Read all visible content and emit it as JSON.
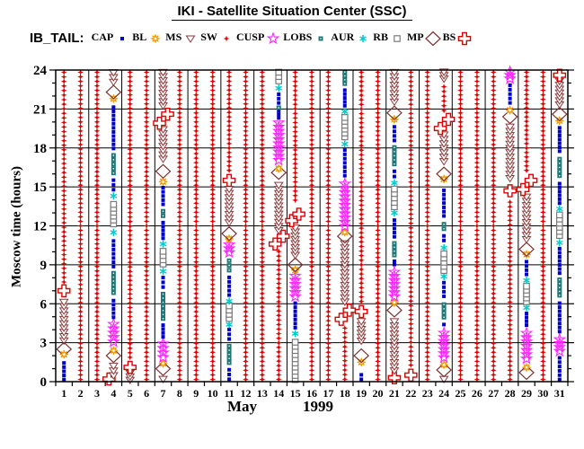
{
  "title": {
    "text": "IKI - Satellite Situation Center (SSC)"
  },
  "legend": {
    "label": "IB_TAIL:",
    "items": [
      {
        "label": "CAP",
        "region": "CAP"
      },
      {
        "label": "BL",
        "region": "BL"
      },
      {
        "label": "MS",
        "region": "MS"
      },
      {
        "label": "SW",
        "region": "SW"
      },
      {
        "label": "CUSP",
        "region": "CUSP"
      },
      {
        "label": "LOBS",
        "region": "LOBS"
      },
      {
        "label": "AUR",
        "region": "AUR"
      },
      {
        "label": "RB",
        "region": "RB"
      },
      {
        "label": "MP",
        "region": "MP"
      },
      {
        "label": "BS",
        "region": "BS"
      }
    ]
  },
  "axes": {
    "x": {
      "month": "May",
      "year": "1999",
      "days": [
        1,
        2,
        3,
        4,
        5,
        6,
        7,
        8,
        9,
        10,
        11,
        12,
        13,
        14,
        15,
        16,
        17,
        18,
        19,
        20,
        21,
        22,
        23,
        24,
        25,
        26,
        27,
        28,
        29,
        30,
        31
      ]
    },
    "y": {
      "label": "Moscow time (hours)",
      "ticks": [
        0,
        3,
        6,
        9,
        12,
        15,
        18,
        21,
        24
      ],
      "range": [
        0,
        24
      ]
    }
  },
  "regions": {
    "CAP": {
      "color": "#0000cc",
      "marker": "filled-square-blue"
    },
    "BL": {
      "color": "#ee9900",
      "marker": "open-sun-orange"
    },
    "MS": {
      "color": "#8b3a3a",
      "marker": "open-triangle-down-maroon"
    },
    "SW": {
      "color": "#dd0000",
      "marker": "filled-star-red"
    },
    "CUSP": {
      "color": "#ff22ff",
      "marker": "open-star-magenta"
    },
    "LOBS": {
      "color": "#1e7878",
      "marker": "filled-square-teal"
    },
    "AUR": {
      "color": "#00cccc",
      "marker": "asterisk-cyan"
    },
    "RB": {
      "color": "#7a7a7a",
      "marker": "open-square-gray"
    },
    "MP": {
      "color": "#7a3030",
      "marker": "open-diamond-maroon"
    },
    "BS": {
      "color": "#dd0000",
      "marker": "open-cross-red"
    }
  },
  "chart_data": {
    "type": "scatter",
    "subtype": "satellite-region-timeline",
    "title": "IKI - Satellite Situation Center (SSC)",
    "satellite": "IB_TAIL",
    "xlabel": "May 1999 (day of month)",
    "ylabel": "Moscow time (hours)",
    "xlim": [
      1,
      31
    ],
    "ylim": [
      0,
      24
    ],
    "x_gridline_every_days": 2,
    "y_gridline_every_hours": 3,
    "days": [
      {
        "day": 1,
        "segments": [
          [
            "SW",
            7.5,
            24
          ],
          [
            "BS",
            7.0,
            7.0
          ],
          [
            "MS",
            3.0,
            6.3
          ],
          [
            "MP",
            2.5,
            2.5
          ],
          [
            "BL",
            2.1,
            2.1
          ],
          [
            "CAP",
            0,
            1.6
          ]
        ]
      },
      {
        "day": 2,
        "segments": [
          [
            "SW",
            0,
            24
          ]
        ]
      },
      {
        "day": 3,
        "segments": [
          [
            "SW",
            0,
            24
          ]
        ]
      },
      {
        "day": 4,
        "segments": [
          [
            "BS",
            0.2,
            0.2,
            -5
          ],
          [
            "MS",
            0.3,
            1.4
          ],
          [
            "MP",
            2.0,
            2.0
          ],
          [
            "BL",
            2.4,
            2.4
          ],
          [
            "CUSP",
            2.9,
            4.6
          ],
          [
            "CAP",
            4.8,
            6.4
          ],
          [
            "LOBS",
            6.7,
            8.5
          ],
          [
            "CAP",
            8.7,
            11.0
          ],
          [
            "AUR",
            11.5,
            11.5
          ],
          [
            "RB",
            12.0,
            13.8
          ],
          [
            "AUR",
            14.3,
            14.3
          ],
          [
            "CAP",
            14.6,
            15.7
          ],
          [
            "LOBS",
            15.9,
            17.6
          ],
          [
            "CAP",
            17.8,
            21.3
          ],
          [
            "BL",
            21.8,
            21.8
          ],
          [
            "MP",
            22.3,
            22.3
          ],
          [
            "MS",
            22.9,
            24
          ]
        ]
      },
      {
        "day": 5,
        "segments": [
          [
            "MS",
            0,
            0.8
          ],
          [
            "BS",
            1.1,
            1.1
          ],
          [
            "SW",
            1.7,
            24
          ]
        ]
      },
      {
        "day": 6,
        "segments": [
          [
            "SW",
            0,
            24
          ]
        ]
      },
      {
        "day": 7,
        "segments": [
          [
            "MS",
            0,
            0.4
          ],
          [
            "MP",
            1.0,
            1.0
          ],
          [
            "BL",
            1.4,
            1.4
          ],
          [
            "CUSP",
            1.7,
            3.1
          ],
          [
            "CAP",
            3.3,
            4.5
          ],
          [
            "LOBS",
            4.7,
            6.9
          ],
          [
            "CAP",
            7.1,
            8.2
          ],
          [
            "AUR",
            8.5,
            8.5
          ],
          [
            "RB",
            8.9,
            10.2
          ],
          [
            "AUR",
            10.6,
            10.6
          ],
          [
            "CAP",
            10.9,
            12.4
          ],
          [
            "LOBS",
            12.6,
            13.3
          ],
          [
            "CAP",
            13.5,
            15.1
          ],
          [
            "BL",
            15.4,
            15.4
          ],
          [
            "MP",
            16.2,
            16.2
          ],
          [
            "MS",
            17.0,
            19.6
          ],
          [
            "BS",
            19.9,
            19.9,
            -4
          ],
          [
            "BS",
            20.6,
            20.6,
            5
          ],
          [
            "MS",
            21.1,
            24
          ]
        ]
      },
      {
        "day": 8,
        "segments": [
          [
            "SW",
            0,
            24
          ]
        ]
      },
      {
        "day": 9,
        "segments": [
          [
            "SW",
            0,
            24
          ]
        ]
      },
      {
        "day": 10,
        "segments": [
          [
            "SW",
            0,
            24
          ]
        ]
      },
      {
        "day": 11,
        "segments": [
          [
            "CAP",
            0,
            1.1
          ],
          [
            "LOBS",
            1.3,
            2.9
          ],
          [
            "CAP",
            3.1,
            4.2
          ],
          [
            "AUR",
            4.4,
            4.4
          ],
          [
            "RB",
            4.7,
            6.0
          ],
          [
            "AUR",
            6.2,
            6.2
          ],
          [
            "CAP",
            6.5,
            8.2
          ],
          [
            "LOBS",
            8.4,
            9.5
          ],
          [
            "CUSP",
            9.8,
            10.7
          ],
          [
            "BL",
            11.0,
            11.0
          ],
          [
            "MP",
            11.4,
            11.4
          ],
          [
            "MS",
            12.1,
            15.0
          ],
          [
            "BS",
            15.5,
            15.5
          ],
          [
            "SW",
            16.1,
            24
          ]
        ]
      },
      {
        "day": 12,
        "segments": [
          [
            "SW",
            0,
            24
          ]
        ]
      },
      {
        "day": 13,
        "segments": [
          [
            "SW",
            0,
            24
          ]
        ]
      },
      {
        "day": 14,
        "segments": [
          [
            "SW",
            0,
            10.2
          ],
          [
            "BS",
            10.6,
            10.6,
            -4
          ],
          [
            "BS",
            11.2,
            11.2,
            5
          ],
          [
            "MS",
            11.5,
            15.3
          ],
          [
            "MP",
            16.1,
            16.1
          ],
          [
            "BL",
            16.4,
            16.4
          ],
          [
            "CUSP",
            16.9,
            20.1
          ],
          [
            "CAP",
            20.2,
            21.0
          ],
          [
            "LOBS",
            21.1,
            21.1
          ],
          [
            "CAP",
            21.3,
            22.3
          ],
          [
            "AUR",
            22.6,
            22.6
          ],
          [
            "RB",
            23.0,
            24
          ]
        ]
      },
      {
        "day": 15,
        "segments": [
          [
            "RB",
            0,
            3.2
          ],
          [
            "AUR",
            3.7,
            3.7
          ],
          [
            "CAP",
            4.0,
            6.2
          ],
          [
            "CUSP",
            6.4,
            8.3
          ],
          [
            "BL",
            8.6,
            8.6
          ],
          [
            "MP",
            9.0,
            9.0
          ],
          [
            "MS",
            9.6,
            12.0
          ],
          [
            "BS",
            12.4,
            12.4,
            -4
          ],
          [
            "BS",
            12.9,
            12.9,
            4
          ],
          [
            "SW",
            13.8,
            24
          ]
        ]
      },
      {
        "day": 16,
        "segments": [
          [
            "SW",
            0,
            24
          ]
        ]
      },
      {
        "day": 17,
        "segments": [
          [
            "SW",
            0,
            24
          ]
        ]
      },
      {
        "day": 18,
        "segments": [
          [
            "SW",
            0,
            4.3
          ],
          [
            "BS",
            4.8,
            4.8,
            -4
          ],
          [
            "BS",
            5.5,
            5.5,
            5
          ],
          [
            "MS",
            6.0,
            10.8
          ],
          [
            "MP",
            11.2,
            11.2
          ],
          [
            "BL",
            11.5,
            11.5
          ],
          [
            "CUSP",
            11.8,
            15.4
          ],
          [
            "CAP",
            15.7,
            18.0
          ],
          [
            "AUR",
            18.3,
            18.3
          ],
          [
            "RB",
            18.7,
            20.5
          ],
          [
            "AUR",
            20.8,
            20.8
          ],
          [
            "CAP",
            21.1,
            22.6
          ],
          [
            "LOBS",
            22.8,
            24
          ]
        ]
      },
      {
        "day": 19,
        "segments": [
          [
            "CAP",
            0,
            0.7
          ],
          [
            "BL",
            1.5,
            1.5
          ],
          [
            "MP",
            2.0,
            2.0
          ],
          [
            "MS",
            3.0,
            4.8
          ],
          [
            "BS",
            5.4,
            5.4
          ],
          [
            "SW",
            6.0,
            24
          ]
        ]
      },
      {
        "day": 20,
        "segments": [
          [
            "SW",
            0,
            24
          ]
        ]
      },
      {
        "day": 21,
        "segments": [
          [
            "BS",
            0.3,
            0.3
          ],
          [
            "MS",
            0.7,
            4.8
          ],
          [
            "MP",
            5.5,
            5.5
          ],
          [
            "BL",
            6.1,
            6.1
          ],
          [
            "CUSP",
            6.4,
            8.6
          ],
          [
            "CAP",
            8.9,
            9.4
          ],
          [
            "LOBS",
            9.6,
            10.8
          ],
          [
            "CAP",
            11.0,
            12.6
          ],
          [
            "AUR",
            13.0,
            13.0
          ],
          [
            "RB",
            13.3,
            15.0
          ],
          [
            "AUR",
            15.3,
            15.3
          ],
          [
            "CAP",
            15.6,
            16.4
          ],
          [
            "LOBS",
            16.6,
            18.2
          ],
          [
            "CAP",
            18.4,
            19.8
          ],
          [
            "BL",
            20.2,
            20.2
          ],
          [
            "MP",
            20.7,
            20.7
          ],
          [
            "MS",
            21.4,
            24
          ]
        ]
      },
      {
        "day": 22,
        "segments": [
          [
            "BS",
            0.5,
            0.5
          ],
          [
            "SW",
            1.1,
            24
          ]
        ]
      },
      {
        "day": 23,
        "segments": [
          [
            "SW",
            0,
            24
          ]
        ]
      },
      {
        "day": 24,
        "segments": [
          [
            "MS",
            0,
            0.4
          ],
          [
            "MP",
            0.9,
            0.9
          ],
          [
            "BL",
            1.3,
            1.3
          ],
          [
            "CUSP",
            1.7,
            3.9
          ],
          [
            "CAP",
            4.2,
            4.6
          ],
          [
            "LOBS",
            4.8,
            6.1
          ],
          [
            "CAP",
            6.4,
            7.8
          ],
          [
            "AUR",
            8.1,
            8.1
          ],
          [
            "RB",
            8.4,
            10.0
          ],
          [
            "AUR",
            10.3,
            10.3
          ],
          [
            "CAP",
            10.7,
            11.4
          ],
          [
            "LOBS",
            11.6,
            12.3
          ],
          [
            "CAP",
            12.6,
            14.9
          ],
          [
            "BL",
            15.6,
            15.6
          ],
          [
            "MP",
            16.0,
            16.0
          ],
          [
            "MS",
            16.8,
            19.2
          ],
          [
            "BS",
            19.5,
            19.5,
            -4
          ],
          [
            "BS",
            20.2,
            20.2,
            5
          ],
          [
            "SW",
            20.7,
            22.9
          ],
          [
            "MS",
            23.2,
            24
          ]
        ]
      },
      {
        "day": 25,
        "segments": [
          [
            "SW",
            0,
            24
          ]
        ]
      },
      {
        "day": 26,
        "segments": [
          [
            "SW",
            0,
            24
          ]
        ]
      },
      {
        "day": 27,
        "segments": [
          [
            "SW",
            0,
            24
          ]
        ]
      },
      {
        "day": 28,
        "segments": [
          [
            "SW",
            0,
            14.0
          ],
          [
            "BS",
            14.7,
            14.7
          ],
          [
            "MS",
            15.5,
            19.8
          ],
          [
            "MP",
            20.4,
            20.4
          ],
          [
            "BL",
            20.9,
            20.9
          ],
          [
            "CAP",
            21.3,
            23.0
          ],
          [
            "CUSP",
            23.2,
            24
          ]
        ]
      },
      {
        "day": 29,
        "segments": [
          [
            "MP",
            0.7,
            0.7
          ],
          [
            "BL",
            1.1,
            1.1
          ],
          [
            "CUSP",
            1.6,
            3.9
          ],
          [
            "CAP",
            4.2,
            5.4
          ],
          [
            "AUR",
            5.7,
            5.7
          ],
          [
            "RB",
            6.0,
            7.5
          ],
          [
            "AUR",
            7.8,
            7.8
          ],
          [
            "CAP",
            8.1,
            9.4
          ],
          [
            "BL",
            9.8,
            9.8
          ],
          [
            "MP",
            10.2,
            10.2
          ],
          [
            "MS",
            10.8,
            14.4
          ],
          [
            "BS",
            14.8,
            14.8,
            -4
          ],
          [
            "BS",
            15.5,
            15.5,
            5
          ],
          [
            "SW",
            16.1,
            24
          ]
        ]
      },
      {
        "day": 30,
        "segments": [
          [
            "SW",
            0,
            24
          ]
        ]
      },
      {
        "day": 31,
        "segments": [
          [
            "CAP",
            0,
            2.0
          ],
          [
            "CUSP",
            2.2,
            3.4
          ],
          [
            "CAP",
            3.7,
            6.2
          ],
          [
            "LOBS",
            6.5,
            8.0
          ],
          [
            "CAP",
            8.2,
            10.4
          ],
          [
            "AUR",
            10.7,
            10.7
          ],
          [
            "RB",
            11.1,
            13.0
          ],
          [
            "AUR",
            13.3,
            13.3
          ],
          [
            "CAP",
            13.6,
            15.4
          ],
          [
            "LOBS",
            15.7,
            17.3
          ],
          [
            "CAP",
            17.6,
            19.7
          ],
          [
            "BL",
            20.1,
            20.1
          ],
          [
            "MP",
            20.6,
            20.6
          ],
          [
            "MS",
            21.2,
            23.3
          ],
          [
            "BS",
            23.6,
            23.6
          ]
        ]
      }
    ]
  }
}
